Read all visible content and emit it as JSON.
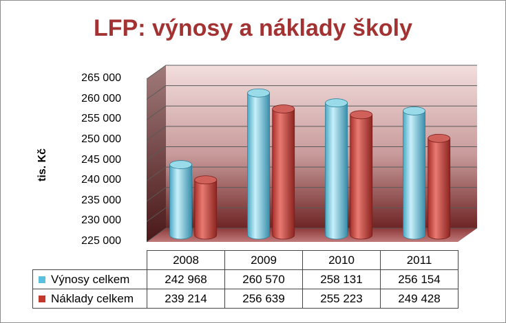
{
  "chart_data": {
    "type": "bar",
    "title": "LFP:  výnosy a náklady školy",
    "ylabel": "tis. Kč",
    "ylim": [
      225000,
      265000
    ],
    "yticks": [
      "225 000",
      "230 000",
      "235 000",
      "240 000",
      "245 000",
      "250 000",
      "255 000",
      "260 000",
      "265 000"
    ],
    "categories": [
      "2008",
      "2009",
      "2010",
      "2011"
    ],
    "series": [
      {
        "name": "Výnosy celkem",
        "color": "#5bc0de",
        "values": [
          242968,
          260570,
          258131,
          256154
        ],
        "labels": [
          "242 968",
          "260 570",
          "258 131",
          "256 154"
        ]
      },
      {
        "name": "Náklady celkem",
        "color": "#c0392b",
        "values": [
          239214,
          256639,
          255223,
          249428
        ],
        "labels": [
          "239 214",
          "256 639",
          "255 223",
          "249 428"
        ]
      }
    ],
    "grid": true,
    "legend": "data-table"
  }
}
